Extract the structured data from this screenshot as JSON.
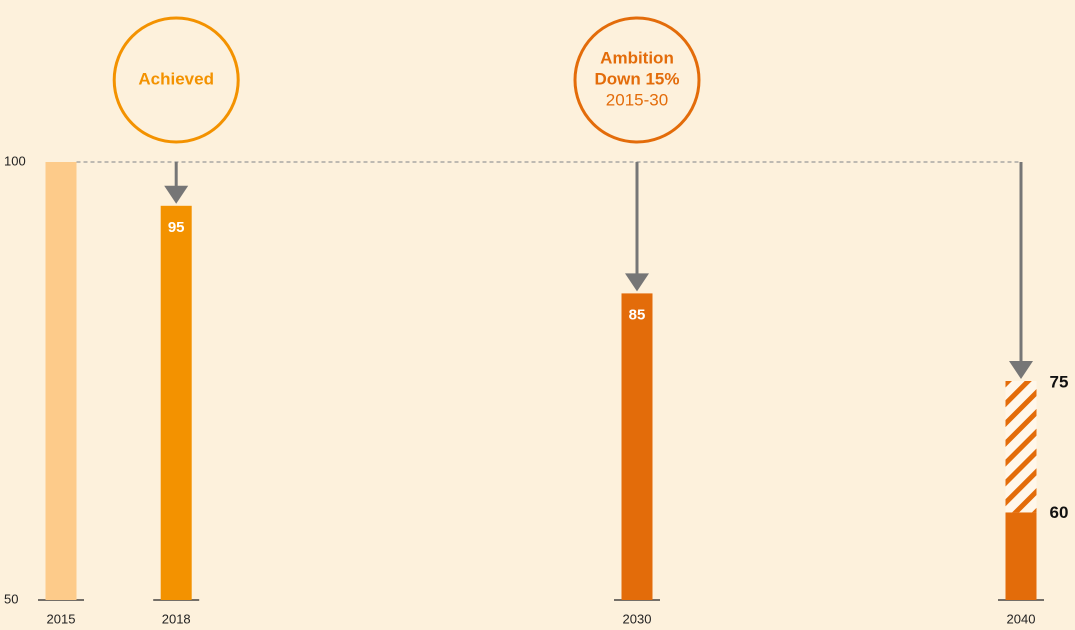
{
  "chart_data": {
    "type": "bar",
    "x": [
      2015,
      2018,
      2030,
      2040
    ],
    "values": [
      100,
      95,
      85,
      60
    ],
    "value_labels": [
      null,
      "95",
      "85",
      "60"
    ],
    "upper_values": [
      null,
      null,
      null,
      75
    ],
    "upper_value_labels": [
      null,
      null,
      null,
      "75"
    ],
    "colors": [
      "#fdcb8a",
      "#f39200",
      "#e36c0a",
      "#e36c0a"
    ],
    "xlim": [
      2015,
      2040
    ],
    "xticks": [
      2015,
      2018,
      2030,
      2040
    ],
    "ylim": [
      50,
      100
    ],
    "yticks": [
      50,
      100
    ],
    "annotations": [
      {
        "x": 2018,
        "color": "#f39200",
        "lines": [
          "Achieved"
        ]
      },
      {
        "x": 2030,
        "color": "#e36c0a",
        "lines": [
          "Ambition",
          "Down 15%",
          "2015-30"
        ]
      }
    ]
  }
}
